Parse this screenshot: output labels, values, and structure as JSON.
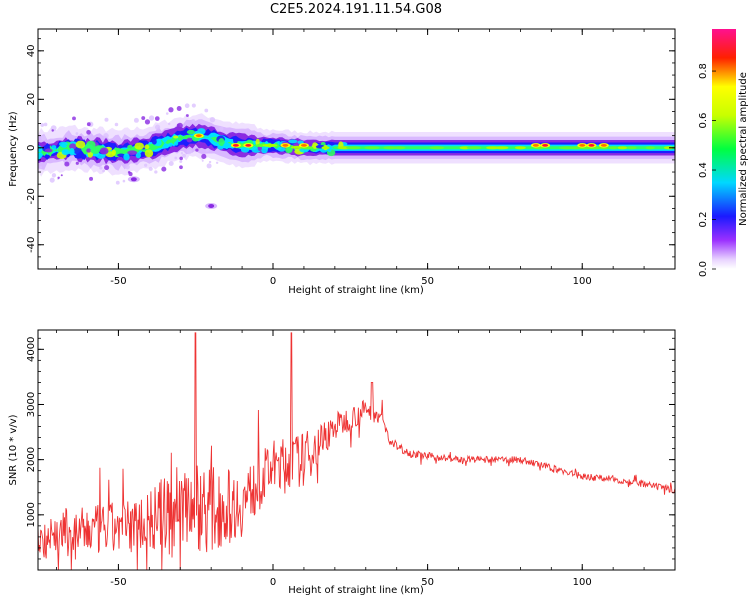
{
  "title": "C2E5.2024.191.11.54.G08",
  "chart_data": [
    {
      "type": "heatmap",
      "xlabel": "Height of straight line (km)",
      "ylabel": "Frequency (Hz)",
      "xlim": [
        -76,
        130
      ],
      "ylim": [
        -50,
        49
      ],
      "xticks": [
        -50,
        0,
        50,
        100
      ],
      "yticks": [
        -40,
        -20,
        0,
        20,
        40
      ],
      "colorbar": {
        "label": "Normalized spectral amplitude",
        "range": [
          0.0,
          0.97
        ],
        "ticks": [
          0.0,
          0.2,
          0.4,
          0.6,
          0.8
        ],
        "colormap": "rainbow (white-purple-blue-cyan-green-yellow-red-magenta)"
      },
      "ridge": {
        "x": [
          -76,
          -70,
          -65,
          -60,
          -55,
          -50,
          -45,
          -40,
          -35,
          -30,
          -25,
          -20,
          -15,
          -10,
          -5,
          0,
          10,
          20,
          40,
          60,
          80,
          100,
          130
        ],
        "frequency_hz": [
          -2,
          -1,
          0,
          -1,
          -1,
          -2,
          -1,
          0,
          2,
          4,
          5,
          4,
          2,
          1,
          1,
          1,
          0,
          0,
          0,
          0,
          0,
          0,
          0
        ]
      },
      "hotspots": [
        {
          "x": -24,
          "frequency_hz": 5,
          "amplitude": 0.85
        },
        {
          "x": -12,
          "frequency_hz": 1,
          "amplitude": 0.9
        },
        {
          "x": -8,
          "frequency_hz": 1,
          "amplitude": 0.95
        },
        {
          "x": 4,
          "frequency_hz": 1,
          "amplitude": 0.85
        },
        {
          "x": 10,
          "frequency_hz": 1,
          "amplitude": 0.8
        },
        {
          "x": 85,
          "frequency_hz": 1,
          "amplitude": 0.85
        },
        {
          "x": 88,
          "frequency_hz": 1,
          "amplitude": 0.9
        },
        {
          "x": 100,
          "frequency_hz": 1,
          "amplitude": 0.85
        },
        {
          "x": 103,
          "frequency_hz": 1,
          "amplitude": 0.95
        },
        {
          "x": 107,
          "frequency_hz": 1,
          "amplitude": 0.85
        }
      ],
      "scatter_features": [
        {
          "x": -20,
          "frequency_hz": -24,
          "amplitude": 0.2
        },
        {
          "x": -45,
          "frequency_hz": -13,
          "amplitude": 0.2
        }
      ]
    },
    {
      "type": "line",
      "xlabel": "Height of straight line (km)",
      "ylabel": "SNR (10 * v/v)",
      "xlim": [
        -76,
        130
      ],
      "ylim": [
        0,
        4350
      ],
      "xticks": [
        -50,
        0,
        50,
        100
      ],
      "yticks": [
        1000,
        2000,
        3000,
        4000
      ],
      "color": "#ee3333",
      "series_envelope": {
        "x": [
          -76,
          -60,
          -45,
          -35,
          -28,
          -20,
          -10,
          0,
          10,
          20,
          30,
          35,
          38,
          45,
          60,
          80,
          90,
          100,
          110,
          120,
          130
        ],
        "mean_snr": [
          600,
          700,
          800,
          1000,
          1300,
          1100,
          1200,
          1900,
          2000,
          2600,
          2900,
          2800,
          2300,
          2100,
          2000,
          2000,
          1850,
          1700,
          1650,
          1550,
          1450
        ],
        "noise": [
          400,
          450,
          500,
          700,
          900,
          800,
          600,
          450,
          500,
          250,
          200,
          150,
          80,
          70,
          60,
          60,
          60,
          60,
          60,
          60,
          60
        ]
      },
      "spikes": [
        {
          "x": -25,
          "snr": 4300
        },
        {
          "x": 6,
          "snr": 4300
        },
        {
          "x": 32,
          "snr": 3400
        }
      ]
    }
  ]
}
